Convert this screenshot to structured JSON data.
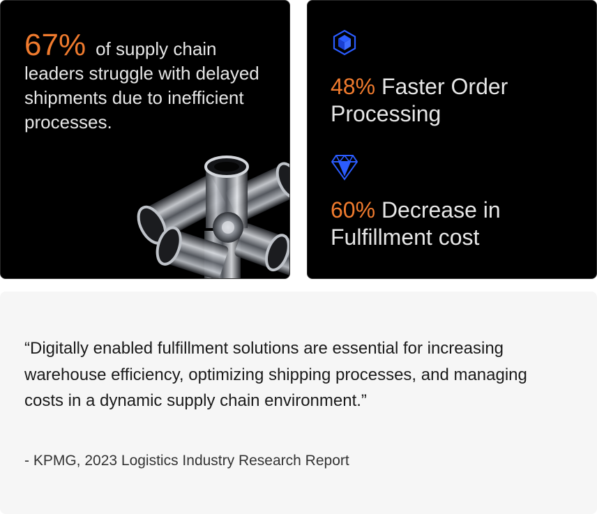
{
  "left_card": {
    "percent": "67%",
    "text": "of supply chain leaders struggle with delayed shipments due to inefficient processes."
  },
  "right_card": {
    "metrics": [
      {
        "icon": "cube-icon",
        "value": "48%",
        "label": "Faster Order Processing"
      },
      {
        "icon": "diamond-icon",
        "value": "60%",
        "label": "Decrease in Fulfillment cost"
      }
    ]
  },
  "quote": {
    "text": "“Digitally enabled fulfillment solutions are essential for increasing warehouse efficiency, optimizing shipping processes, and managing costs in a dynamic supply chain environment.”",
    "source": "- KPMG, 2023 Logistics Industry Research Report"
  },
  "colors": {
    "accent": "#f07b2e",
    "icon_blue": "#2b5cff",
    "card_dark": "#000000",
    "quote_bg": "#f6f6f6"
  }
}
